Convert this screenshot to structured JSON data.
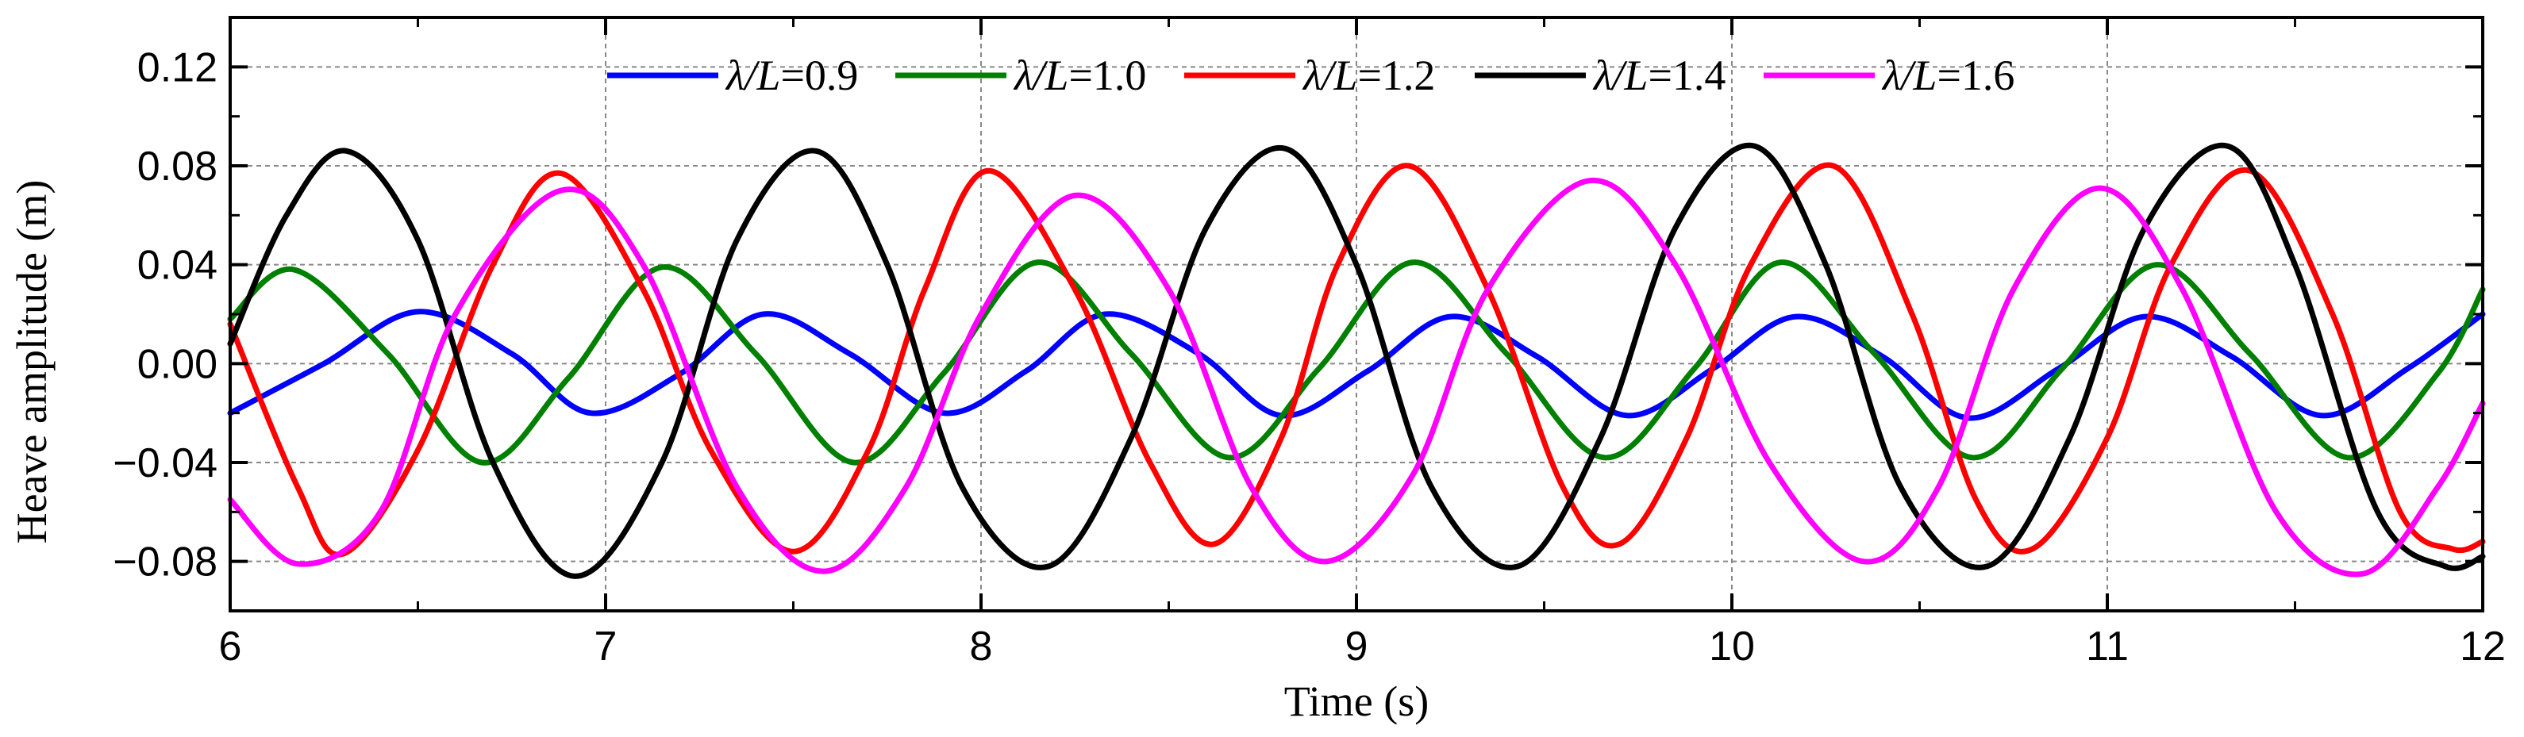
{
  "chart_data": {
    "type": "line",
    "title": "",
    "xlabel": "Time (s)",
    "ylabel": "Heave amplitude (m)",
    "xlim": [
      6,
      12
    ],
    "ylim": [
      -0.1,
      0.14
    ],
    "x_ticks": [
      6,
      7,
      8,
      9,
      10,
      11,
      12
    ],
    "x_tick_labels": [
      "6",
      "7",
      "8",
      "9",
      "10",
      "11",
      "12"
    ],
    "y_ticks": [
      -0.08,
      -0.04,
      0.0,
      0.04,
      0.08,
      0.12
    ],
    "y_tick_labels": [
      "−0.08",
      "−0.04",
      "0.00",
      "0.04",
      "0.08",
      "0.12"
    ],
    "grid": true,
    "legend_position": "top",
    "series": [
      {
        "name": "λ/L=0.9",
        "color": "#0000ff",
        "points": [
          [
            6.0,
            -0.02
          ],
          [
            6.25,
            0.0
          ],
          [
            6.5,
            0.021
          ],
          [
            6.75,
            0.004
          ],
          [
            6.96,
            -0.02
          ],
          [
            7.2,
            -0.004
          ],
          [
            7.42,
            0.02
          ],
          [
            7.65,
            0.004
          ],
          [
            7.9,
            -0.02
          ],
          [
            8.12,
            -0.003
          ],
          [
            8.33,
            0.02
          ],
          [
            8.58,
            0.004
          ],
          [
            8.8,
            -0.021
          ],
          [
            9.03,
            -0.003
          ],
          [
            9.25,
            0.019
          ],
          [
            9.48,
            0.003
          ],
          [
            9.72,
            -0.021
          ],
          [
            9.95,
            -0.002
          ],
          [
            10.17,
            0.019
          ],
          [
            10.4,
            0.003
          ],
          [
            10.63,
            -0.022
          ],
          [
            10.87,
            -0.002
          ],
          [
            11.1,
            0.019
          ],
          [
            11.33,
            0.003
          ],
          [
            11.57,
            -0.021
          ],
          [
            11.8,
            -0.002
          ],
          [
            12.0,
            0.02
          ]
        ]
      },
      {
        "name": "λ/L=1.0",
        "color": "#008000",
        "points": [
          [
            6.0,
            0.018
          ],
          [
            6.17,
            0.038
          ],
          [
            6.42,
            0.004
          ],
          [
            6.67,
            -0.04
          ],
          [
            6.9,
            -0.006
          ],
          [
            7.15,
            0.039
          ],
          [
            7.4,
            0.004
          ],
          [
            7.66,
            -0.04
          ],
          [
            7.9,
            -0.004
          ],
          [
            8.15,
            0.041
          ],
          [
            8.4,
            0.004
          ],
          [
            8.66,
            -0.038
          ],
          [
            8.9,
            -0.002
          ],
          [
            9.15,
            0.041
          ],
          [
            9.4,
            0.004
          ],
          [
            9.66,
            -0.038
          ],
          [
            9.9,
            -0.002
          ],
          [
            10.13,
            0.041
          ],
          [
            10.38,
            0.004
          ],
          [
            10.64,
            -0.038
          ],
          [
            10.88,
            -0.002
          ],
          [
            11.13,
            0.04
          ],
          [
            11.38,
            0.004
          ],
          [
            11.64,
            -0.038
          ],
          [
            11.88,
            -0.004
          ],
          [
            12.0,
            0.03
          ]
        ]
      },
      {
        "name": "λ/L=1.2",
        "color": "#ff0000",
        "points": [
          [
            6.0,
            0.016
          ],
          [
            6.18,
            -0.05
          ],
          [
            6.3,
            -0.077
          ],
          [
            6.5,
            -0.035
          ],
          [
            6.7,
            0.04
          ],
          [
            6.88,
            0.077
          ],
          [
            7.1,
            0.03
          ],
          [
            7.28,
            -0.035
          ],
          [
            7.5,
            -0.076
          ],
          [
            7.7,
            -0.035
          ],
          [
            7.85,
            0.03
          ],
          [
            8.02,
            0.078
          ],
          [
            8.25,
            0.03
          ],
          [
            8.45,
            -0.04
          ],
          [
            8.62,
            -0.073
          ],
          [
            8.8,
            -0.03
          ],
          [
            8.95,
            0.04
          ],
          [
            9.14,
            0.08
          ],
          [
            9.35,
            0.03
          ],
          [
            9.55,
            -0.05
          ],
          [
            9.7,
            -0.073
          ],
          [
            9.88,
            -0.03
          ],
          [
            10.05,
            0.04
          ],
          [
            10.27,
            0.08
          ],
          [
            10.48,
            0.02
          ],
          [
            10.65,
            -0.055
          ],
          [
            10.8,
            -0.075
          ],
          [
            11.0,
            -0.03
          ],
          [
            11.17,
            0.04
          ],
          [
            11.38,
            0.078
          ],
          [
            11.6,
            0.02
          ],
          [
            11.78,
            -0.06
          ],
          [
            11.92,
            -0.075
          ],
          [
            12.0,
            -0.072
          ]
        ]
      },
      {
        "name": "λ/L=1.4",
        "color": "#000000",
        "points": [
          [
            6.0,
            0.008
          ],
          [
            6.15,
            0.06
          ],
          [
            6.31,
            0.086
          ],
          [
            6.5,
            0.05
          ],
          [
            6.7,
            -0.04
          ],
          [
            6.92,
            -0.086
          ],
          [
            7.15,
            -0.04
          ],
          [
            7.35,
            0.05
          ],
          [
            7.56,
            0.086
          ],
          [
            7.75,
            0.04
          ],
          [
            7.95,
            -0.05
          ],
          [
            8.18,
            -0.082
          ],
          [
            8.4,
            -0.03
          ],
          [
            8.6,
            0.055
          ],
          [
            8.81,
            0.087
          ],
          [
            9.0,
            0.04
          ],
          [
            9.2,
            -0.05
          ],
          [
            9.43,
            -0.082
          ],
          [
            9.65,
            -0.03
          ],
          [
            9.85,
            0.055
          ],
          [
            10.06,
            0.088
          ],
          [
            10.25,
            0.04
          ],
          [
            10.45,
            -0.05
          ],
          [
            10.68,
            -0.082
          ],
          [
            10.9,
            -0.03
          ],
          [
            11.1,
            0.055
          ],
          [
            11.32,
            0.088
          ],
          [
            11.5,
            0.04
          ],
          [
            11.72,
            -0.06
          ],
          [
            11.9,
            -0.082
          ],
          [
            12.0,
            -0.078
          ]
        ]
      },
      {
        "name": "λ/L=1.6",
        "color": "#ff00ff",
        "points": [
          [
            6.0,
            -0.055
          ],
          [
            6.18,
            -0.081
          ],
          [
            6.4,
            -0.06
          ],
          [
            6.6,
            0.02
          ],
          [
            6.88,
            0.07
          ],
          [
            7.1,
            0.04
          ],
          [
            7.35,
            -0.05
          ],
          [
            7.58,
            -0.084
          ],
          [
            7.8,
            -0.05
          ],
          [
            8.0,
            0.02
          ],
          [
            8.25,
            0.068
          ],
          [
            8.5,
            0.03
          ],
          [
            8.72,
            -0.05
          ],
          [
            8.92,
            -0.08
          ],
          [
            9.15,
            -0.045
          ],
          [
            9.35,
            0.03
          ],
          [
            9.62,
            0.074
          ],
          [
            9.85,
            0.04
          ],
          [
            10.1,
            -0.04
          ],
          [
            10.35,
            -0.08
          ],
          [
            10.55,
            -0.05
          ],
          [
            10.75,
            0.03
          ],
          [
            10.98,
            0.071
          ],
          [
            11.2,
            0.03
          ],
          [
            11.45,
            -0.06
          ],
          [
            11.68,
            -0.085
          ],
          [
            11.88,
            -0.05
          ],
          [
            12.0,
            -0.016
          ]
        ]
      }
    ]
  }
}
